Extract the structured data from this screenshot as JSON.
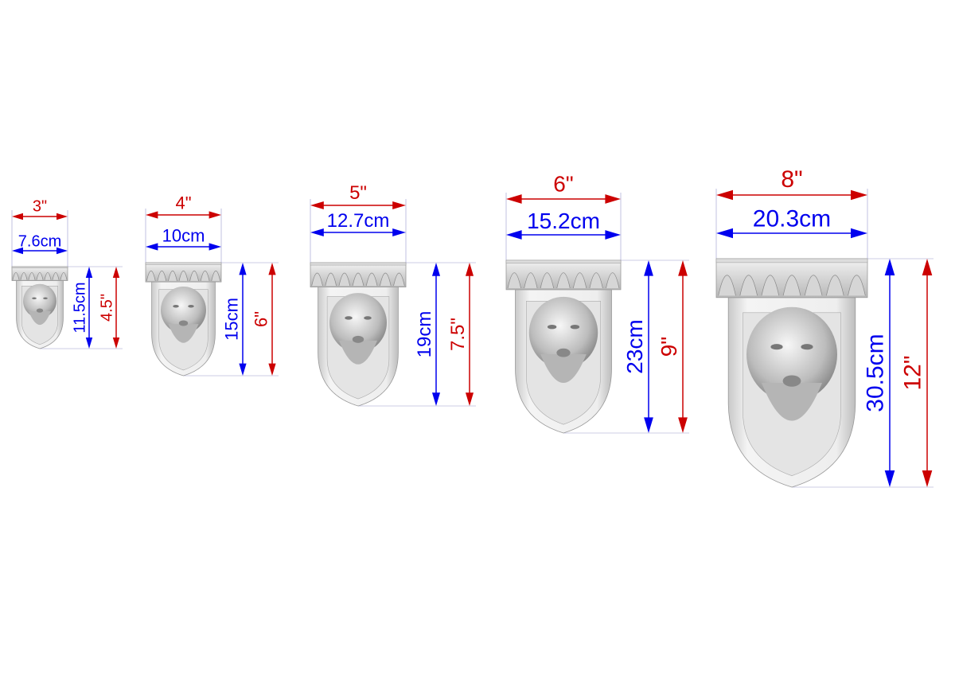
{
  "items": [
    {
      "width_in": "3\"",
      "width_cm": "7.6cm",
      "height_cm": "11.5cm",
      "height_in": "4.5\""
    },
    {
      "width_in": "4\"",
      "width_cm": "10cm",
      "height_cm": "15cm",
      "height_in": "6\""
    },
    {
      "width_in": "5\"",
      "width_cm": "12.7cm",
      "height_cm": "19cm",
      "height_in": "7.5\""
    },
    {
      "width_in": "6\"",
      "width_cm": "15.2cm",
      "height_cm": "23cm",
      "height_in": "9\""
    },
    {
      "width_in": "8\"",
      "width_cm": "20.3cm",
      "height_cm": "30.5cm",
      "height_in": "12\""
    }
  ]
}
